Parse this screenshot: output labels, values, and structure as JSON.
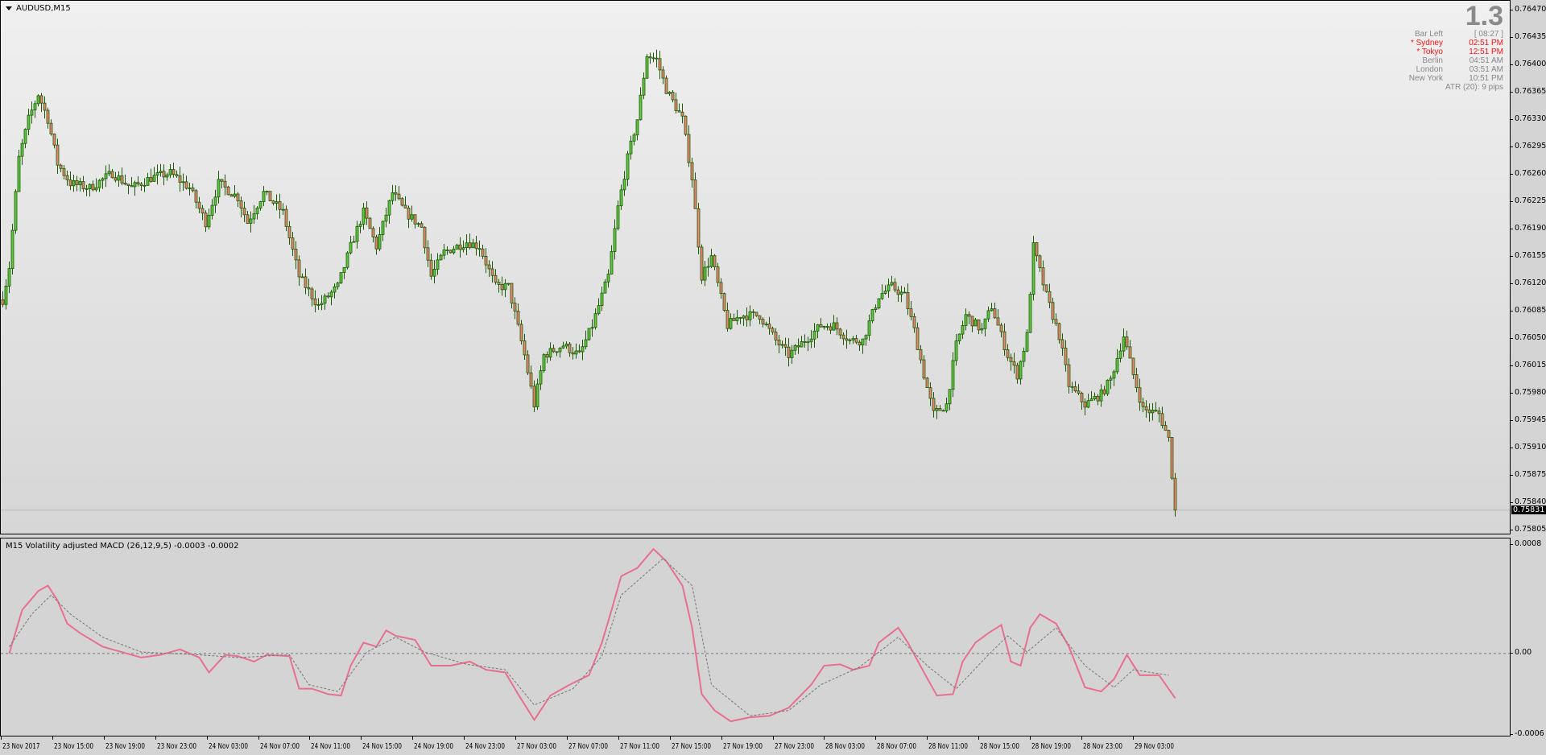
{
  "chart": {
    "symbol_label": "AUDUSD,M15"
  },
  "info_panel": {
    "spread": "1.3",
    "rows": [
      {
        "name": "Bar Left",
        "value": "[ 08:27 ]",
        "highlight": false
      },
      {
        "name": "* Sydney",
        "value": "02:51 PM",
        "highlight": true
      },
      {
        "name": "* Tokyo",
        "value": "12:51 PM",
        "highlight": true
      },
      {
        "name": "Berlin",
        "value": "04:51 AM",
        "highlight": false
      },
      {
        "name": "London",
        "value": "03:51 AM",
        "highlight": false
      },
      {
        "name": "New York",
        "value": "10:51 PM",
        "highlight": false
      }
    ],
    "atr": "ATR (20): 9 pips"
  },
  "indicator": {
    "label": "M15 Volatility adjusted MACD (26,12,9,5) -0.0003 -0.0002"
  },
  "colors": {
    "bull_fill": "#5cc63c",
    "bear_fill": "#e8866a",
    "outline": "#1f5a0a",
    "macd": "#e8708f",
    "signal": "#777777"
  },
  "chart_data": [
    {
      "type": "candlestick",
      "bars": 365,
      "ylim": [
        0.75805,
        0.7647
      ],
      "price_ticks": [
        "0.76470",
        "0.76435",
        "0.76400",
        "0.76365",
        "0.76330",
        "0.76295",
        "0.76260",
        "0.76225",
        "0.76190",
        "0.76155",
        "0.76120",
        "0.76085",
        "0.76050",
        "0.76015",
        "0.75980",
        "0.75945",
        "0.75910",
        "0.75875",
        "0.75840",
        "0.75805"
      ],
      "current_price": "0.75831",
      "close_path": [
        [
          0,
          0.761
        ],
        [
          2,
          0.76142
        ],
        [
          5,
          0.76281
        ],
        [
          8,
          0.76331
        ],
        [
          11,
          0.76363
        ],
        [
          14,
          0.76331
        ],
        [
          17,
          0.76274
        ],
        [
          21,
          0.76249
        ],
        [
          27,
          0.76243
        ],
        [
          34,
          0.76262
        ],
        [
          40,
          0.76243
        ],
        [
          46,
          0.76256
        ],
        [
          52,
          0.76262
        ],
        [
          58,
          0.76243
        ],
        [
          63,
          0.76199
        ],
        [
          67,
          0.76249
        ],
        [
          73,
          0.76231
        ],
        [
          76,
          0.76199
        ],
        [
          81,
          0.76237
        ],
        [
          87,
          0.76212
        ],
        [
          92,
          0.7613
        ],
        [
          98,
          0.76092
        ],
        [
          104,
          0.76117
        ],
        [
          108,
          0.76168
        ],
        [
          112,
          0.76212
        ],
        [
          116,
          0.76168
        ],
        [
          121,
          0.76237
        ],
        [
          125,
          0.76212
        ],
        [
          130,
          0.76193
        ],
        [
          133,
          0.7613
        ],
        [
          137,
          0.76161
        ],
        [
          144,
          0.76174
        ],
        [
          148,
          0.76168
        ],
        [
          153,
          0.76117
        ],
        [
          157,
          0.76117
        ],
        [
          162,
          0.76029
        ],
        [
          165,
          0.75966
        ],
        [
          168,
          0.76029
        ],
        [
          174,
          0.76042
        ],
        [
          179,
          0.76029
        ],
        [
          183,
          0.76067
        ],
        [
          188,
          0.7613
        ],
        [
          191,
          0.76218
        ],
        [
          194,
          0.76281
        ],
        [
          197,
          0.76331
        ],
        [
          200,
          0.76413
        ],
        [
          203,
          0.76407
        ],
        [
          206,
          0.76369
        ],
        [
          211,
          0.76331
        ],
        [
          214,
          0.76256
        ],
        [
          217,
          0.7613
        ],
        [
          220,
          0.76155
        ],
        [
          225,
          0.76067
        ],
        [
          229,
          0.7608
        ],
        [
          235,
          0.7608
        ],
        [
          240,
          0.76048
        ],
        [
          244,
          0.76029
        ],
        [
          249,
          0.76048
        ],
        [
          254,
          0.76067
        ],
        [
          258,
          0.76067
        ],
        [
          263,
          0.76048
        ],
        [
          267,
          0.76048
        ],
        [
          272,
          0.76105
        ],
        [
          276,
          0.76117
        ],
        [
          280,
          0.76105
        ],
        [
          283,
          0.76061
        ],
        [
          286,
          0.76004
        ],
        [
          289,
          0.75954
        ],
        [
          293,
          0.75966
        ],
        [
          296,
          0.76042
        ],
        [
          299,
          0.7608
        ],
        [
          304,
          0.76061
        ],
        [
          307,
          0.76092
        ],
        [
          312,
          0.76029
        ],
        [
          315,
          0.76004
        ],
        [
          318,
          0.76054
        ],
        [
          320,
          0.76168
        ],
        [
          324,
          0.76105
        ],
        [
          328,
          0.76054
        ],
        [
          331,
          0.75991
        ],
        [
          336,
          0.75966
        ],
        [
          341,
          0.75979
        ],
        [
          344,
          0.75998
        ],
        [
          348,
          0.76054
        ],
        [
          351,
          0.76004
        ],
        [
          354,
          0.7596
        ],
        [
          359,
          0.75954
        ],
        [
          362,
          0.75922
        ],
        [
          364,
          0.75831
        ]
      ],
      "x_ticks": [
        "23 Nov 2017",
        "23 Nov 15:00",
        "23 Nov 19:00",
        "23 Nov 23:00",
        "24 Nov 03:00",
        "24 Nov 07:00",
        "24 Nov 11:00",
        "24 Nov 15:00",
        "24 Nov 19:00",
        "24 Nov 23:00",
        "27 Nov 03:00",
        "27 Nov 07:00",
        "27 Nov 11:00",
        "27 Nov 15:00",
        "27 Nov 19:00",
        "27 Nov 23:00",
        "28 Nov 03:00",
        "28 Nov 07:00",
        "28 Nov 11:00",
        "28 Nov 15:00",
        "28 Nov 19:00",
        "28 Nov 23:00",
        "29 Nov 03:00"
      ]
    },
    {
      "type": "line",
      "ylim": [
        -0.0006,
        0.0008
      ],
      "y_ticks": [
        "0.0008",
        "0.00",
        "-0.0006"
      ],
      "zero_line": true,
      "series": [
        {
          "key": "macd",
          "points": [
            [
              2,
              0.0
            ],
            [
              6,
              0.00032
            ],
            [
              11,
              0.00046
            ],
            [
              14,
              0.0005
            ],
            [
              17,
              0.00039
            ],
            [
              20,
              0.00022
            ],
            [
              24,
              0.00015
            ],
            [
              31,
              5e-05
            ],
            [
              37,
              1e-05
            ],
            [
              43,
              -3e-05
            ],
            [
              49,
              -1e-05
            ],
            [
              55,
              3e-05
            ],
            [
              61,
              -3e-05
            ],
            [
              64,
              -0.00014
            ],
            [
              69,
              -1e-05
            ],
            [
              73,
              -2e-05
            ],
            [
              78,
              -6e-05
            ],
            [
              82,
              -1e-05
            ],
            [
              89,
              -2e-05
            ],
            [
              92,
              -0.00026
            ],
            [
              96,
              -0.00026
            ],
            [
              101,
              -0.0003
            ],
            [
              105,
              -0.00031
            ],
            [
              108,
              -9e-05
            ],
            [
              112,
              8e-05
            ],
            [
              116,
              5e-05
            ],
            [
              119,
              0.00017
            ],
            [
              122,
              0.00013
            ],
            [
              128,
              0.0001
            ],
            [
              133,
              -9e-05
            ],
            [
              139,
              -9e-05
            ],
            [
              145,
              -6e-05
            ],
            [
              150,
              -0.00012
            ],
            [
              156,
              -0.00014
            ],
            [
              160,
              -0.0003
            ],
            [
              165,
              -0.00049
            ],
            [
              170,
              -0.00031
            ],
            [
              176,
              -0.00023
            ],
            [
              182,
              -0.00016
            ],
            [
              186,
              8e-05
            ],
            [
              189,
              0.00032
            ],
            [
              192,
              0.00057
            ],
            [
              197,
              0.00063
            ],
            [
              202,
              0.00077
            ],
            [
              206,
              0.00068
            ],
            [
              211,
              0.0005
            ],
            [
              214,
              0.00019
            ],
            [
              217,
              -0.0003
            ],
            [
              221,
              -0.00042
            ],
            [
              226,
              -0.0005
            ],
            [
              232,
              -0.00047
            ],
            [
              238,
              -0.00046
            ],
            [
              244,
              -0.0004
            ],
            [
              251,
              -0.00023
            ],
            [
              255,
              -9e-05
            ],
            [
              260,
              -8e-05
            ],
            [
              264,
              -0.00012
            ],
            [
              269,
              -9e-05
            ],
            [
              272,
              8e-05
            ],
            [
              278,
              0.00019
            ],
            [
              281,
              8e-05
            ],
            [
              286,
              -0.00014
            ],
            [
              290,
              -0.00031
            ],
            [
              295,
              -0.0003
            ],
            [
              298,
              -6e-05
            ],
            [
              302,
              8e-05
            ],
            [
              306,
              0.00015
            ],
            [
              310,
              0.00021
            ],
            [
              313,
              -6e-05
            ],
            [
              316,
              -9e-05
            ],
            [
              319,
              0.00019
            ],
            [
              322,
              0.00029
            ],
            [
              327,
              0.00022
            ],
            [
              331,
              5e-05
            ],
            [
              336,
              -0.00025
            ],
            [
              341,
              -0.00028
            ],
            [
              345,
              -0.00019
            ],
            [
              349,
              -1e-05
            ],
            [
              353,
              -0.00016
            ],
            [
              359,
              -0.00016
            ],
            [
              364,
              -0.00033
            ]
          ]
        },
        {
          "key": "signal",
          "points": [
            [
              2,
              5e-05
            ],
            [
              9,
              0.00029
            ],
            [
              15,
              0.00043
            ],
            [
              21,
              0.00029
            ],
            [
              31,
              0.00012
            ],
            [
              43,
              1e-05
            ],
            [
              61,
              -1e-05
            ],
            [
              73,
              -3e-05
            ],
            [
              89,
              -1e-05
            ],
            [
              95,
              -0.00023
            ],
            [
              104,
              -0.00028
            ],
            [
              113,
              1e-05
            ],
            [
              122,
              0.00012
            ],
            [
              131,
              1e-05
            ],
            [
              144,
              -8e-05
            ],
            [
              156,
              -0.00012
            ],
            [
              165,
              -0.00038
            ],
            [
              177,
              -0.00026
            ],
            [
              186,
              -2e-05
            ],
            [
              192,
              0.00043
            ],
            [
              205,
              0.0007
            ],
            [
              214,
              0.0005
            ],
            [
              220,
              -0.00023
            ],
            [
              232,
              -0.00046
            ],
            [
              244,
              -0.00042
            ],
            [
              254,
              -0.00023
            ],
            [
              266,
              -0.0001
            ],
            [
              278,
              0.00012
            ],
            [
              287,
              -9e-05
            ],
            [
              296,
              -0.00026
            ],
            [
              306,
              -1e-05
            ],
            [
              312,
              0.00013
            ],
            [
              318,
              1e-05
            ],
            [
              327,
              0.00019
            ],
            [
              336,
              -9e-05
            ],
            [
              345,
              -0.00025
            ],
            [
              351,
              -0.00012
            ],
            [
              362,
              -0.00016
            ]
          ]
        }
      ]
    }
  ]
}
